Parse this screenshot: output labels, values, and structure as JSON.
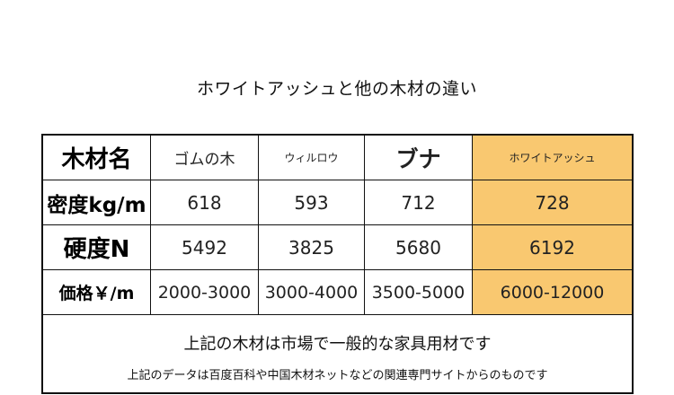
{
  "title": "ホワイトアッシュと他の木材の違い",
  "table": {
    "header": [
      "木材名",
      "ゴムの木",
      "ウィルロウ",
      "ブナ",
      "ホワイトアッシュ"
    ],
    "rows": [
      [
        "密度kg/m",
        "618",
        "593",
        "712",
        "728"
      ],
      [
        "硬度N",
        "5492",
        "3825",
        "5680",
        "6192"
      ],
      [
        "価格￥/m",
        "2000-3000",
        "3000-4000",
        "3500-5000",
        "6000-12000"
      ]
    ],
    "highlight_color": "#f9c870"
  },
  "footer": {
    "note1": "上記の木材は市場で一般的な家具用材です",
    "note2": "上記のデータは百度百科や中国木材ネットなどの関連専門サイトからのものです"
  }
}
